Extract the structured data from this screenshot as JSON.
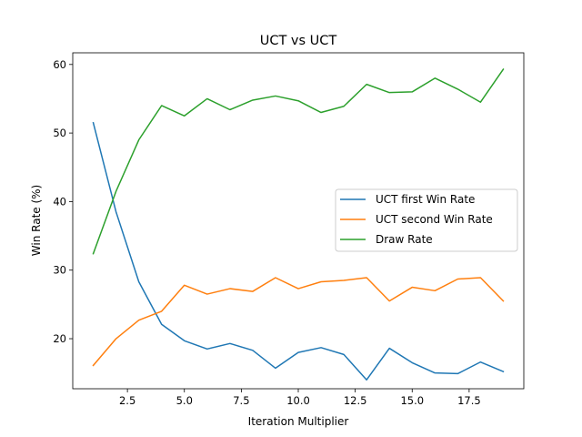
{
  "chart_data": {
    "type": "line",
    "title": "UCT vs UCT",
    "xlabel": "Iteration Multiplier",
    "ylabel": "Win Rate (%)",
    "xlim": [
      0.1,
      19.9
    ],
    "ylim": [
      12.7,
      61.7
    ],
    "xticks": [
      2.5,
      5.0,
      7.5,
      10.0,
      12.5,
      15.0,
      17.5
    ],
    "xtick_labels": [
      "2.5",
      "5.0",
      "7.5",
      "10.0",
      "12.5",
      "15.0",
      "17.5"
    ],
    "yticks": [
      20,
      30,
      40,
      50,
      60
    ],
    "ytick_labels": [
      "20",
      "30",
      "40",
      "50",
      "60"
    ],
    "grid": false,
    "legend_position": "center-right",
    "x": [
      1,
      2,
      3,
      4,
      5,
      6,
      7,
      8,
      9,
      10,
      11,
      12,
      13,
      14,
      15,
      16,
      17,
      18,
      19
    ],
    "series": [
      {
        "name": "UCT first Win Rate",
        "color": "#1f77b4",
        "values": [
          51.5,
          38.5,
          28.3,
          22.1,
          19.7,
          18.5,
          19.3,
          18.3,
          15.7,
          18.0,
          18.7,
          17.7,
          14.0,
          18.6,
          16.5,
          15.0,
          14.9,
          16.6,
          15.2
        ]
      },
      {
        "name": "UCT second Win Rate",
        "color": "#ff7f0e",
        "values": [
          16.1,
          20.0,
          22.7,
          24.0,
          27.8,
          26.5,
          27.3,
          26.9,
          28.9,
          27.3,
          28.3,
          28.5,
          28.9,
          25.5,
          27.5,
          27.0,
          28.7,
          28.9,
          25.5
        ]
      },
      {
        "name": "Draw Rate",
        "color": "#2ca02c",
        "values": [
          32.4,
          41.5,
          49.0,
          54.0,
          52.5,
          55.0,
          53.4,
          54.8,
          55.4,
          54.7,
          53.0,
          53.9,
          57.1,
          55.9,
          56.0,
          58.0,
          56.4,
          54.5,
          59.3
        ]
      }
    ]
  }
}
